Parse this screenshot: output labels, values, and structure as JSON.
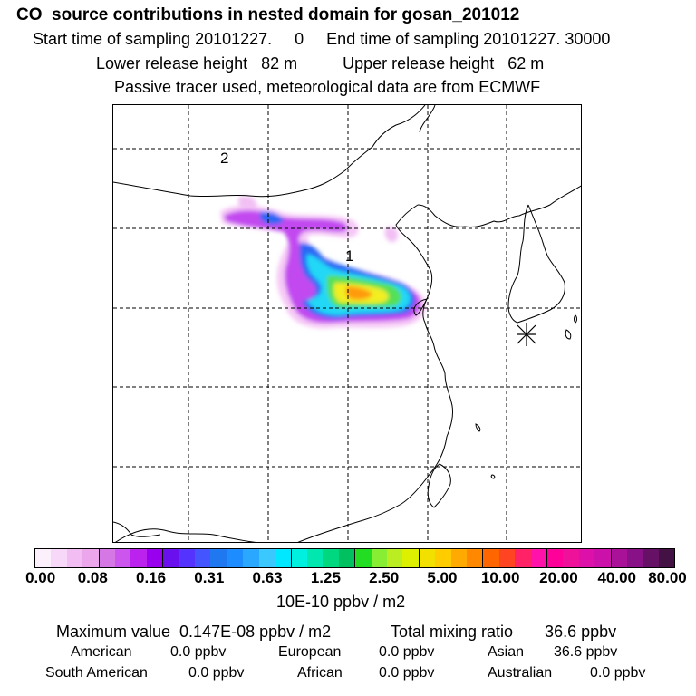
{
  "header": {
    "title": "CO  source contributions in nested domain for gosan_201012",
    "line1": "Start time of sampling 20101227.     0     End time of sampling 20101227. 30000",
    "line2": "Lower release height   82 m          Upper release height   62 m",
    "line3": "Passive tracer used, meteorological data are from ECMWF"
  },
  "map": {
    "labels": [
      "2",
      "1"
    ],
    "receptor_icon": "asterisk-receptor-icon"
  },
  "colorbar": {
    "colors": [
      "#fdf0fd",
      "#f8d8f8",
      "#f2bdf2",
      "#eca6ec",
      "#d677e6",
      "#cc55ee",
      "#bb22ee",
      "#9900ee",
      "#6a10ee",
      "#5533ff",
      "#4455ff",
      "#1f78f0",
      "#1c8cff",
      "#2aa8ff",
      "#3ac8ff",
      "#00e8ff",
      "#00f0e0",
      "#00e8b0",
      "#00d880",
      "#00c060",
      "#22dd22",
      "#88ee33",
      "#bbee22",
      "#ddf000",
      "#f2e000",
      "#ffcc00",
      "#ffaa00",
      "#ff8800",
      "#ff6600",
      "#ff4422",
      "#ff2266",
      "#ff11aa",
      "#ff0099",
      "#ee1199",
      "#dd11aa",
      "#cc11aa",
      "#aa1199",
      "#881188",
      "#661166",
      "#441144"
    ],
    "ticks": [
      "0.00",
      "0.08",
      "0.16",
      "0.31",
      "0.63",
      "1.25",
      "2.50",
      "5.00",
      "10.00",
      "20.00",
      "40.00",
      "80.00"
    ],
    "units": "10E-10 ppbv / m2"
  },
  "stats": {
    "max_value": "Maximum value  0.147E-08 ppbv / m2",
    "total_mixing": "Total mixing ratio       36.6 ppbv",
    "american_label": "American",
    "american_value": "0.0 ppbv",
    "european_label": "European",
    "european_value": "0.0 ppbv",
    "asian_label": "Asian",
    "asian_value": "36.6 ppbv",
    "south_american_label": "South American",
    "south_american_value": "0.0 ppbv",
    "african_label": "African",
    "african_value": "0.0 ppbv",
    "australian_label": "Australian",
    "australian_value": "0.0 ppbv"
  }
}
